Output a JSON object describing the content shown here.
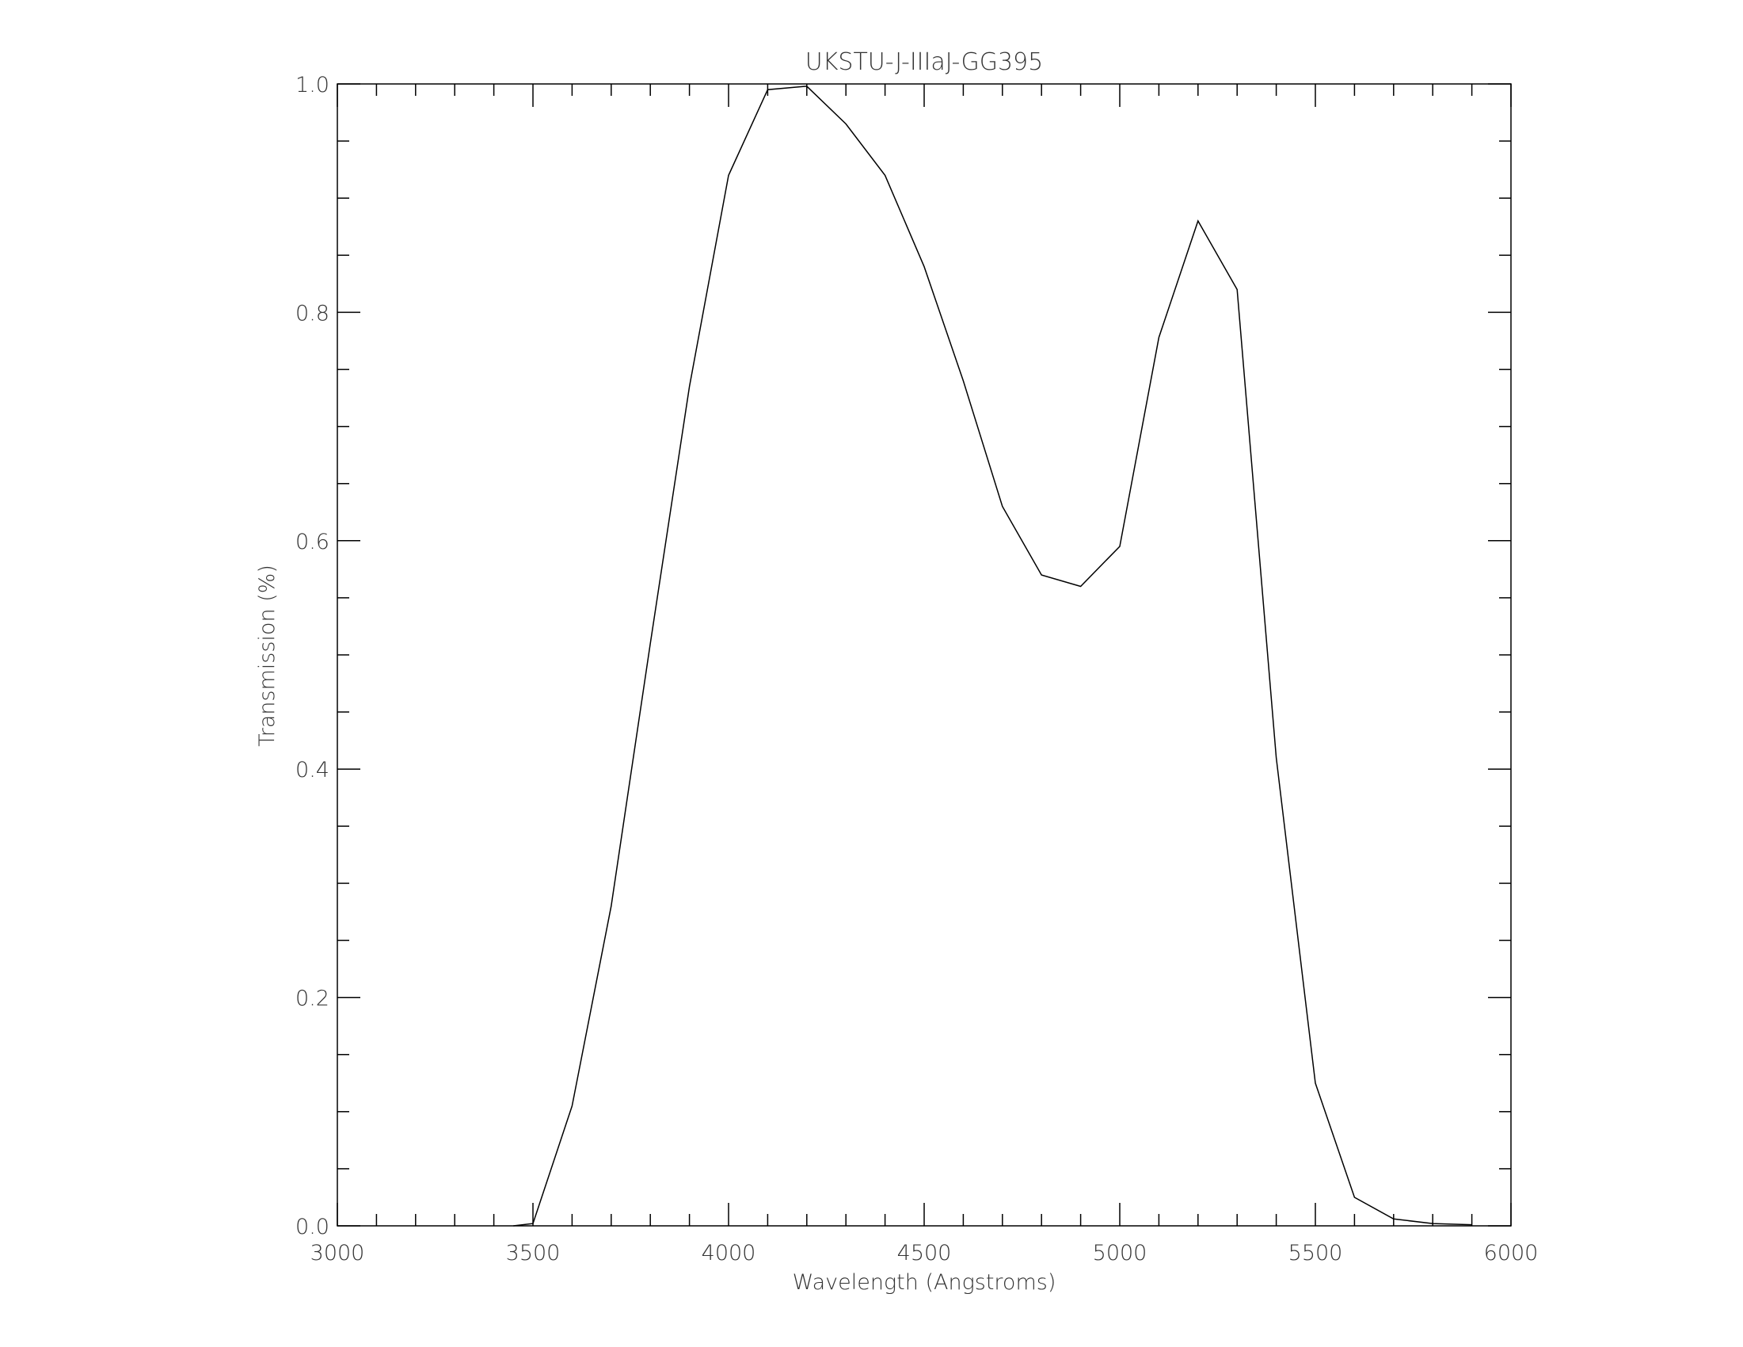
{
  "chart_data": {
    "type": "line",
    "title": "UKSTU-J-IIIaJ-GG395",
    "xlabel": "Wavelength (Angstroms)",
    "ylabel": "Transmission (%)",
    "xlim": [
      3000,
      6000
    ],
    "ylim": [
      0.0,
      1.0
    ],
    "xticks": [
      "3000",
      "3500",
      "4000",
      "4500",
      "5000",
      "5500",
      "6000"
    ],
    "yticks": [
      "0.0",
      "0.2",
      "0.4",
      "0.6",
      "0.8",
      "1.0"
    ],
    "grid": false,
    "line_color": "#000000",
    "series": [
      {
        "x": [
          3450,
          3500,
          3600,
          3700,
          3800,
          3900,
          4000,
          4100,
          4200,
          4300,
          4400,
          4500,
          4600,
          4700,
          4800,
          4900,
          5000,
          5100,
          5200,
          5300,
          5400,
          5500,
          5600,
          5700,
          5800,
          5900
        ],
        "y": [
          0.0,
          0.002,
          0.105,
          0.28,
          0.51,
          0.735,
          0.92,
          0.995,
          0.998,
          0.965,
          0.92,
          0.84,
          0.74,
          0.63,
          0.57,
          0.56,
          0.595,
          0.778,
          0.88,
          0.82,
          0.41,
          0.125,
          0.025,
          0.006,
          0.002,
          0.001
        ]
      }
    ]
  }
}
